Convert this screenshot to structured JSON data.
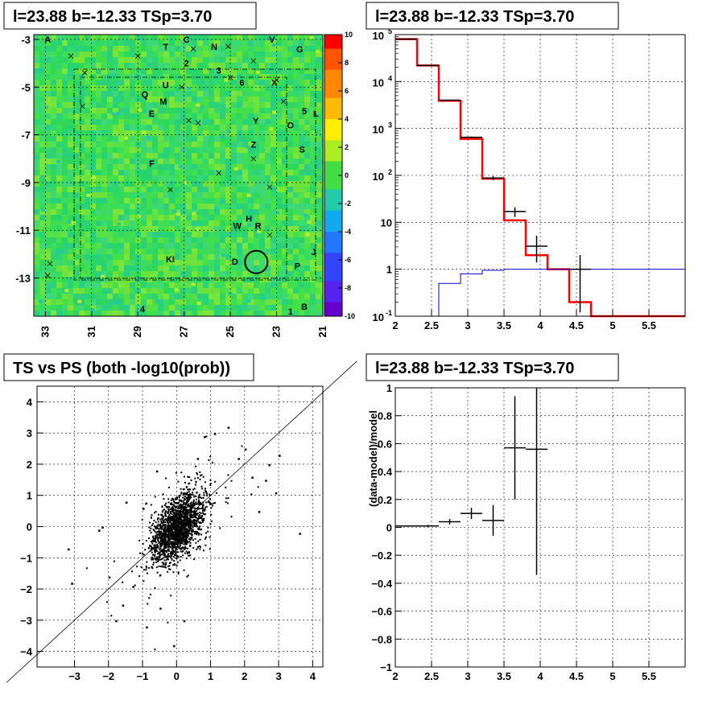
{
  "panels": {
    "map_title": "l=23.88 b=-12.33 TSp=3.70",
    "spectrum_title": "l=23.88 b=-12.33 TSp=3.70",
    "ts_title": "TS vs PS (both -log10(prob))",
    "residual_title": "l=23.88 b=-12.33 TSp=3.70"
  },
  "colors": {
    "data": "#000000",
    "model": "#ff0000",
    "background": "#0000cc",
    "map_base": "#33dd55"
  },
  "chart_data": [
    {
      "type": "heatmap",
      "xlabel": "",
      "ylabel": "",
      "x_ticks": [
        "33",
        "31",
        "29",
        "27",
        "25",
        "23",
        "21"
      ],
      "x_tick_values": [
        33,
        31,
        29,
        27,
        25,
        23,
        21
      ],
      "xlim": [
        33.5,
        21
      ],
      "y_ticks": [
        "-3",
        "-5",
        "-7",
        "-9",
        "-11",
        "-13"
      ],
      "y_tick_values": [
        -3,
        -5,
        -7,
        -9,
        -11,
        -13
      ],
      "ylim": [
        -14.6,
        -2.8
      ],
      "colorbar": {
        "ticks": [
          "10",
          "8",
          "6",
          "4",
          "2",
          "0",
          "-2",
          "-4",
          "-6",
          "-8",
          "-10"
        ],
        "range": [
          -10,
          10
        ]
      },
      "grid": true,
      "highlight_circle": {
        "l": 23.88,
        "b": -12.33
      },
      "source_labels": [
        {
          "text": "A",
          "l": 32.9,
          "b": -3.0
        },
        {
          "text": "C",
          "l": 26.9,
          "b": -3.0
        },
        {
          "text": "T",
          "l": 27.8,
          "b": -3.3
        },
        {
          "text": "N",
          "l": 25.7,
          "b": -3.3
        },
        {
          "text": "V",
          "l": 23.2,
          "b": -3.0
        },
        {
          "text": "G",
          "l": 22.0,
          "b": -3.4
        },
        {
          "text": "2",
          "l": 26.9,
          "b": -4.0
        },
        {
          "text": "3",
          "l": 25.5,
          "b": -4.3
        },
        {
          "text": "U",
          "l": 27.8,
          "b": -4.9
        },
        {
          "text": "6",
          "l": 24.5,
          "b": -4.8
        },
        {
          "text": "X",
          "l": 23.1,
          "b": -4.8
        },
        {
          "text": "Q",
          "l": 28.7,
          "b": -5.3
        },
        {
          "text": "M",
          "l": 27.9,
          "b": -5.6
        },
        {
          "text": "E",
          "l": 28.4,
          "b": -6.1
        },
        {
          "text": "5",
          "l": 21.8,
          "b": -6.0
        },
        {
          "text": "L",
          "l": 21.3,
          "b": -6.1
        },
        {
          "text": "Y",
          "l": 23.9,
          "b": -6.4
        },
        {
          "text": "O",
          "l": 22.4,
          "b": -6.6
        },
        {
          "text": "Z",
          "l": 24.0,
          "b": -7.4
        },
        {
          "text": "S",
          "l": 21.9,
          "b": -7.6
        },
        {
          "text": "F",
          "l": 28.4,
          "b": -8.2
        },
        {
          "text": "H",
          "l": 24.2,
          "b": -10.5
        },
        {
          "text": "W",
          "l": 24.7,
          "b": -10.8
        },
        {
          "text": "R",
          "l": 23.8,
          "b": -10.8
        },
        {
          "text": "J",
          "l": 21.4,
          "b": -11.9
        },
        {
          "text": "KI",
          "l": 27.6,
          "b": -12.2
        },
        {
          "text": "D",
          "l": 24.8,
          "b": -12.3
        },
        {
          "text": "P",
          "l": 22.1,
          "b": -12.5
        },
        {
          "text": "B",
          "l": 21.8,
          "b": -14.2
        },
        {
          "text": "4",
          "l": 28.8,
          "b": -14.3
        },
        {
          "text": "1",
          "l": 22.4,
          "b": -14.4
        }
      ],
      "crosses": [
        [
          31.9,
          -3.7
        ],
        [
          29.0,
          -3.7
        ],
        [
          26.6,
          -3.4
        ],
        [
          25.1,
          -3.3
        ],
        [
          24.0,
          -3.9
        ],
        [
          31.3,
          -4.4
        ],
        [
          27.1,
          -5.0
        ],
        [
          25.0,
          -4.6
        ],
        [
          23.0,
          -4.7
        ],
        [
          22.7,
          -5.6
        ],
        [
          31.4,
          -5.8
        ],
        [
          26.8,
          -6.4
        ],
        [
          26.4,
          -6.5
        ],
        [
          24.0,
          -8.0
        ],
        [
          25.5,
          -8.6
        ],
        [
          27.6,
          -9.3
        ],
        [
          23.3,
          -9.2
        ],
        [
          23.3,
          -11.2
        ],
        [
          32.8,
          -12.4
        ],
        [
          32.9,
          -12.9
        ]
      ]
    },
    {
      "type": "line",
      "yscale": "log",
      "xlim": [
        2,
        6
      ],
      "ylim": [
        0.1,
        100000
      ],
      "x_ticks": [
        "2",
        "2.5",
        "3",
        "3.5",
        "4",
        "4.5",
        "5",
        "5.5"
      ],
      "y_ticks": [
        "10^-1",
        "1",
        "10",
        "10^2",
        "10^3",
        "10^4",
        "10^5"
      ],
      "grid": true,
      "series": [
        {
          "type": "step",
          "color": "#ff0000",
          "edges": [
            2.0,
            2.3,
            2.6,
            2.9,
            3.2,
            3.5,
            3.8,
            4.1,
            4.4,
            4.7,
            6.0
          ],
          "values": [
            80000,
            22000,
            3900,
            600,
            85,
            11,
            2.0,
            1.0,
            0.2,
            0.09
          ]
        },
        {
          "type": "step",
          "color": "#0000cc",
          "edges": [
            2.0,
            2.3,
            2.6,
            2.9,
            3.2,
            3.5,
            3.8,
            4.1,
            4.4,
            4.7,
            6.0
          ],
          "values": [
            0.02,
            0.08,
            0.5,
            0.8,
            0.95,
            1.0,
            1.0,
            1.0,
            1.0,
            1.0
          ]
        },
        {
          "type": "errorbar",
          "color": "#000000",
          "points": [
            {
              "x": 2.15,
              "dx": 0.15,
              "y": 80000,
              "ylo": 79500,
              "yhi": 80500
            },
            {
              "x": 2.45,
              "dx": 0.15,
              "y": 22000,
              "ylo": 21800,
              "yhi": 22200
            },
            {
              "x": 2.75,
              "dx": 0.15,
              "y": 4000,
              "ylo": 3930,
              "yhi": 4070
            },
            {
              "x": 3.05,
              "dx": 0.15,
              "y": 650,
              "ylo": 625,
              "yhi": 675
            },
            {
              "x": 3.35,
              "dx": 0.15,
              "y": 88,
              "ylo": 79,
              "yhi": 97
            },
            {
              "x": 3.65,
              "dx": 0.15,
              "y": 17,
              "ylo": 13,
              "yhi": 21
            },
            {
              "x": 3.95,
              "dx": 0.15,
              "y": 3.1,
              "ylo": 1.4,
              "yhi": 5.2
            },
            {
              "x": 4.55,
              "dx": 0.15,
              "y": 1.0,
              "ylo": 0.12,
              "yhi": 2.0
            }
          ]
        }
      ]
    },
    {
      "type": "scatter",
      "title": "TS vs PS (both -log10(prob))",
      "xlim": [
        -4.1,
        4.3
      ],
      "ylim": [
        -4.5,
        4.5
      ],
      "x_ticks": [
        "−3",
        "−2",
        "−1",
        "0",
        "1",
        "2",
        "3",
        "4"
      ],
      "x_tick_values": [
        -3,
        -2,
        -1,
        0,
        1,
        2,
        3,
        4
      ],
      "y_ticks": [
        "−4",
        "−3",
        "−2",
        "−1",
        "0",
        "1",
        "2",
        "3",
        "4"
      ],
      "y_tick_values": [
        -4,
        -3,
        -2,
        -1,
        0,
        1,
        2,
        3,
        4
      ],
      "grid": true,
      "reference_line": {
        "slope": 1,
        "intercept": 0
      },
      "n_points": 6500,
      "core_points": [
        {
          "x": 0.8,
          "y": 2.9
        },
        {
          "x": 1.1,
          "y": 3.0
        },
        {
          "x": 1.5,
          "y": 3.2
        },
        {
          "x": 2.0,
          "y": 2.5
        },
        {
          "x": 1.8,
          "y": 2.2
        },
        {
          "x": 2.2,
          "y": 1.6
        },
        {
          "x": 2.7,
          "y": 2.0
        },
        {
          "x": 3.0,
          "y": 2.3
        },
        {
          "x": 2.6,
          "y": 1.5
        },
        {
          "x": 2.9,
          "y": 1.1
        },
        {
          "x": 3.6,
          "y": -0.2
        },
        {
          "x": 2.4,
          "y": 0.5
        },
        {
          "x": -2.2,
          "y": 0.0
        },
        {
          "x": -2.3,
          "y": -0.1
        },
        {
          "x": -3.2,
          "y": -0.7
        },
        {
          "x": -3.1,
          "y": -1.8
        },
        {
          "x": -2.0,
          "y": -1.6
        },
        {
          "x": -1.3,
          "y": -1.9
        },
        {
          "x": -1.8,
          "y": -3.0
        },
        {
          "x": -1.6,
          "y": -2.5
        },
        {
          "x": -0.9,
          "y": -3.2
        },
        {
          "x": -0.1,
          "y": -3.8
        },
        {
          "x": -0.5,
          "y": -2.6
        },
        {
          "x": 0.2,
          "y": -3.0
        },
        {
          "x": -1.0,
          "y": 0.6
        },
        {
          "x": -1.5,
          "y": 0.8
        },
        {
          "x": -0.6,
          "y": 1.8
        },
        {
          "x": 0.6,
          "y": 2.2
        }
      ]
    },
    {
      "type": "scatter",
      "ylabel": "(data-model)/model",
      "xlim": [
        2,
        6
      ],
      "ylim": [
        -1,
        1
      ],
      "x_ticks": [
        "2",
        "2.5",
        "3",
        "3.5",
        "4",
        "4.5",
        "5",
        "5.5"
      ],
      "y_ticks": [
        "−1",
        "−0.8",
        "−0.6",
        "−0.4",
        "−0.2",
        "0",
        "0.2",
        "0.4",
        "0.6",
        "0.8",
        "1"
      ],
      "grid": true,
      "errorbars": [
        {
          "x": 2.15,
          "dx": 0.15,
          "y": 0.01,
          "dy": 0.005
        },
        {
          "x": 2.45,
          "dx": 0.15,
          "y": 0.01,
          "dy": 0.008
        },
        {
          "x": 2.75,
          "dx": 0.15,
          "y": 0.04,
          "dy": 0.02
        },
        {
          "x": 3.05,
          "dx": 0.15,
          "y": 0.1,
          "dy": 0.04
        },
        {
          "x": 3.35,
          "dx": 0.15,
          "y": 0.05,
          "dy": 0.11
        },
        {
          "x": 3.65,
          "dx": 0.15,
          "y": 0.57,
          "dy": 0.37
        },
        {
          "x": 3.95,
          "dx": 0.15,
          "y": 0.56,
          "dy": 0.9
        }
      ]
    }
  ]
}
